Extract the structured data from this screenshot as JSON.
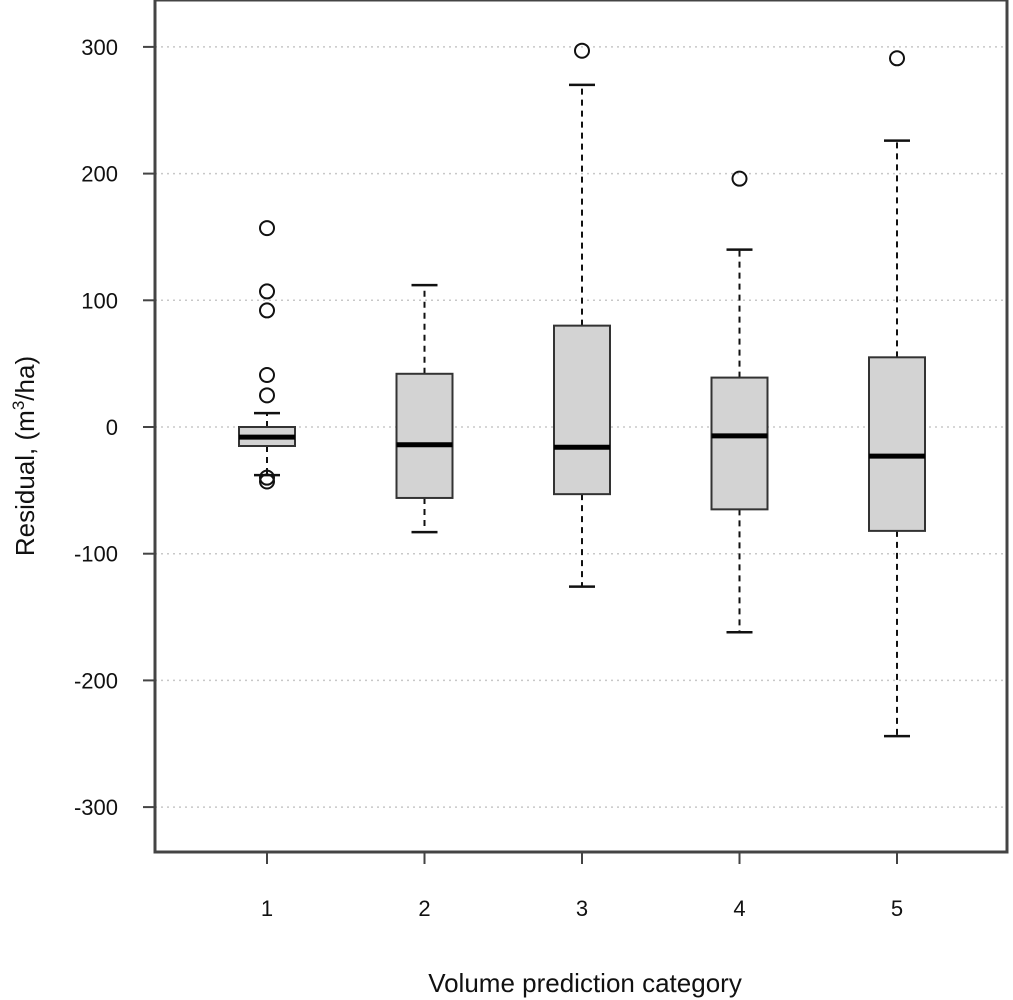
{
  "chart_data": {
    "type": "boxplot",
    "title": "",
    "xlabel": "Volume prediction category",
    "ylabel_prefix": "Residual, (m",
    "ylabel_sup": "3",
    "ylabel_suffix": "/ha)",
    "ylim": [
      -340,
      335
    ],
    "yticks": [
      300,
      200,
      100,
      0,
      -100,
      -200,
      -300
    ],
    "grid": "horizontal-dotted",
    "categories": [
      "1",
      "2",
      "3",
      "4",
      "5"
    ],
    "boxes": [
      {
        "category": "1",
        "whisker_low": -38,
        "q1": -15,
        "median": -8,
        "q3": 0,
        "whisker_high": 11,
        "outliers": [
          157,
          107,
          92,
          41,
          25,
          -40,
          -43
        ]
      },
      {
        "category": "2",
        "whisker_low": -83,
        "q1": -56,
        "median": -14,
        "q3": 42,
        "whisker_high": 112,
        "outliers": []
      },
      {
        "category": "3",
        "whisker_low": -126,
        "q1": -53,
        "median": -16,
        "q3": 80,
        "whisker_high": 270,
        "outliers": [
          297
        ]
      },
      {
        "category": "4",
        "whisker_low": -162,
        "q1": -65,
        "median": -7,
        "q3": 39,
        "whisker_high": 140,
        "outliers": [
          196
        ]
      },
      {
        "category": "5",
        "whisker_low": -244,
        "q1": -82,
        "median": -23,
        "q3": 55,
        "whisker_high": 226,
        "outliers": [
          291
        ]
      }
    ],
    "colors": {
      "box_fill": "#d3d3d3",
      "stroke": "#111111",
      "grid": "#c8c8c8"
    }
  }
}
